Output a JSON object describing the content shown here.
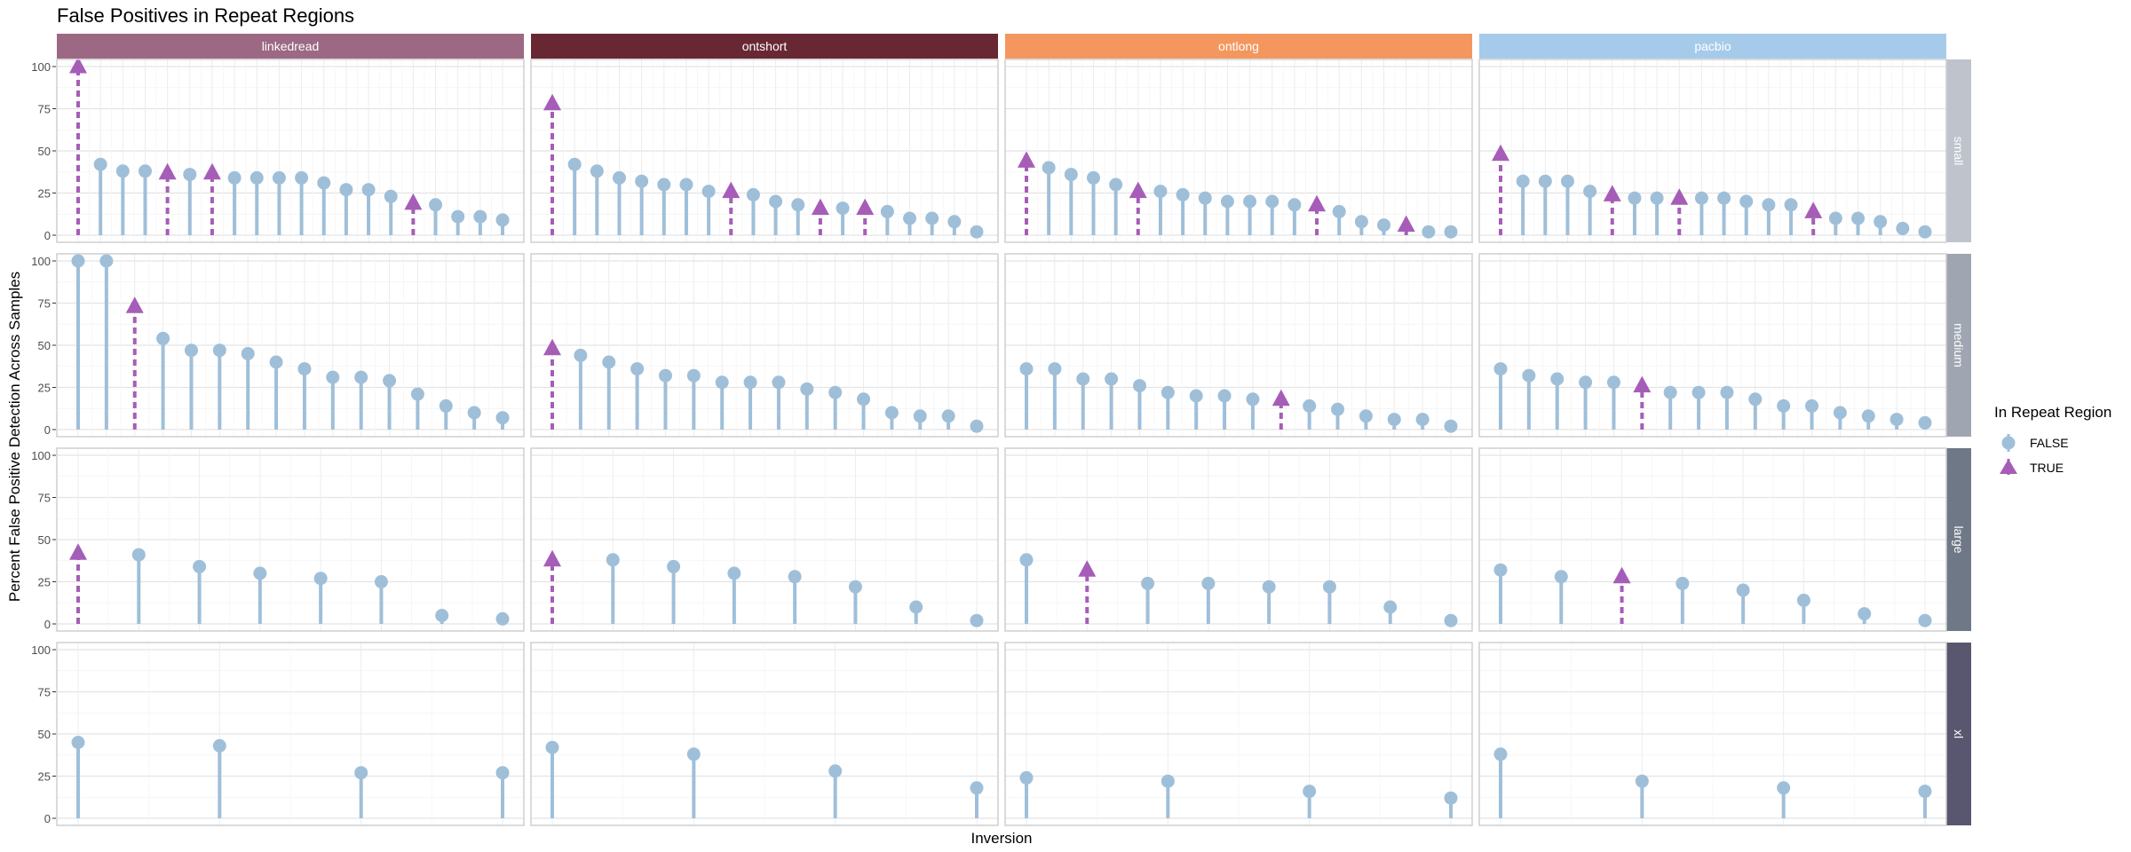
{
  "chart_data": {
    "type": "lollipop",
    "title": "False Positives in Repeat Regions",
    "xlabel": "Inversion",
    "ylabel": "Percent False Positive Detection Across Samples",
    "ylim": [
      0,
      100
    ],
    "y_ticks": [
      "0",
      "25",
      "50",
      "75",
      "100"
    ],
    "grid": true,
    "legend": {
      "title": "In Repeat Region",
      "position": "right",
      "entries": [
        {
          "label": "FALSE",
          "shape": "circle",
          "color": "#9FBFD9"
        },
        {
          "label": "TRUE",
          "shape": "triangle",
          "color": "#A65DB8"
        }
      ]
    },
    "columns": [
      {
        "label": "linkedread",
        "color": "#9C6883"
      },
      {
        "label": "ontshort",
        "color": "#682833"
      },
      {
        "label": "ontlong",
        "color": "#F4975E"
      },
      {
        "label": "pacbio",
        "color": "#A6CBEA"
      }
    ],
    "rows": [
      {
        "label": "small",
        "color": "#BEC3CC"
      },
      {
        "label": "medium",
        "color": "#9FA6B1"
      },
      {
        "label": "large",
        "color": "#6F7886"
      },
      {
        "label": "xl",
        "color": "#595670"
      }
    ],
    "panels": [
      [
        {
          "values": [
            100,
            42,
            38,
            38,
            37,
            36,
            37,
            34,
            34,
            34,
            34,
            31,
            27,
            27,
            23,
            19,
            18,
            11,
            11,
            9
          ],
          "repeat": [
            true,
            false,
            false,
            false,
            true,
            false,
            true,
            false,
            false,
            false,
            false,
            false,
            false,
            false,
            false,
            true,
            false,
            false,
            false,
            false
          ]
        },
        {
          "values": [
            78,
            42,
            38,
            34,
            32,
            30,
            30,
            26,
            26,
            24,
            20,
            18,
            16,
            16,
            16,
            14,
            10,
            10,
            8,
            2
          ],
          "repeat": [
            true,
            false,
            false,
            false,
            false,
            false,
            false,
            false,
            true,
            false,
            false,
            false,
            true,
            false,
            true,
            false,
            false,
            false,
            false,
            false
          ]
        },
        {
          "values": [
            44,
            40,
            36,
            34,
            30,
            26,
            26,
            24,
            22,
            20,
            20,
            20,
            18,
            18,
            14,
            8,
            6,
            6,
            2,
            2
          ],
          "repeat": [
            true,
            false,
            false,
            false,
            false,
            true,
            false,
            false,
            false,
            false,
            false,
            false,
            false,
            true,
            false,
            false,
            false,
            true,
            false,
            false
          ]
        },
        {
          "values": [
            48,
            32,
            32,
            32,
            26,
            24,
            22,
            22,
            22,
            22,
            22,
            20,
            18,
            18,
            14,
            10,
            10,
            8,
            4,
            2
          ],
          "repeat": [
            true,
            false,
            false,
            false,
            false,
            true,
            false,
            false,
            true,
            false,
            false,
            false,
            false,
            false,
            true,
            false,
            false,
            false,
            false,
            false
          ]
        }
      ],
      [
        {
          "values": [
            100,
            100,
            73,
            54,
            47,
            47,
            45,
            40,
            36,
            31,
            31,
            29,
            21,
            14,
            10,
            7
          ],
          "repeat": [
            false,
            false,
            true,
            false,
            false,
            false,
            false,
            false,
            false,
            false,
            false,
            false,
            false,
            false,
            false,
            false
          ]
        },
        {
          "values": [
            48,
            44,
            40,
            36,
            32,
            32,
            28,
            28,
            28,
            24,
            22,
            18,
            10,
            8,
            8,
            2
          ],
          "repeat": [
            true,
            false,
            false,
            false,
            false,
            false,
            false,
            false,
            false,
            false,
            false,
            false,
            false,
            false,
            false,
            false
          ]
        },
        {
          "values": [
            36,
            36,
            30,
            30,
            26,
            22,
            20,
            20,
            18,
            18,
            14,
            12,
            8,
            6,
            6,
            2
          ],
          "repeat": [
            false,
            false,
            false,
            false,
            false,
            false,
            false,
            false,
            false,
            true,
            false,
            false,
            false,
            false,
            false,
            false
          ]
        },
        {
          "values": [
            36,
            32,
            30,
            28,
            28,
            26,
            22,
            22,
            22,
            18,
            14,
            14,
            10,
            8,
            6,
            4
          ],
          "repeat": [
            false,
            false,
            false,
            false,
            false,
            true,
            false,
            false,
            false,
            false,
            false,
            false,
            false,
            false,
            false,
            false
          ]
        }
      ],
      [
        {
          "values": [
            42,
            41,
            34,
            30,
            27,
            25,
            5,
            3
          ],
          "repeat": [
            true,
            false,
            false,
            false,
            false,
            false,
            false,
            false
          ]
        },
        {
          "values": [
            38,
            38,
            34,
            30,
            28,
            22,
            10,
            2
          ],
          "repeat": [
            true,
            false,
            false,
            false,
            false,
            false,
            false,
            false
          ]
        },
        {
          "values": [
            38,
            32,
            24,
            24,
            22,
            22,
            10,
            2
          ],
          "repeat": [
            false,
            true,
            false,
            false,
            false,
            false,
            false,
            false
          ]
        },
        {
          "values": [
            32,
            28,
            28,
            24,
            20,
            14,
            6,
            2
          ],
          "repeat": [
            false,
            false,
            true,
            false,
            false,
            false,
            false,
            false
          ]
        }
      ],
      [
        {
          "values": [
            45,
            43,
            27,
            27
          ],
          "repeat": [
            false,
            false,
            false,
            false
          ]
        },
        {
          "values": [
            42,
            38,
            28,
            18
          ],
          "repeat": [
            false,
            false,
            false,
            false
          ]
        },
        {
          "values": [
            24,
            22,
            16,
            12
          ],
          "repeat": [
            false,
            false,
            false,
            false
          ]
        },
        {
          "values": [
            38,
            22,
            18,
            16
          ],
          "repeat": [
            false,
            false,
            false,
            false
          ]
        }
      ]
    ]
  }
}
